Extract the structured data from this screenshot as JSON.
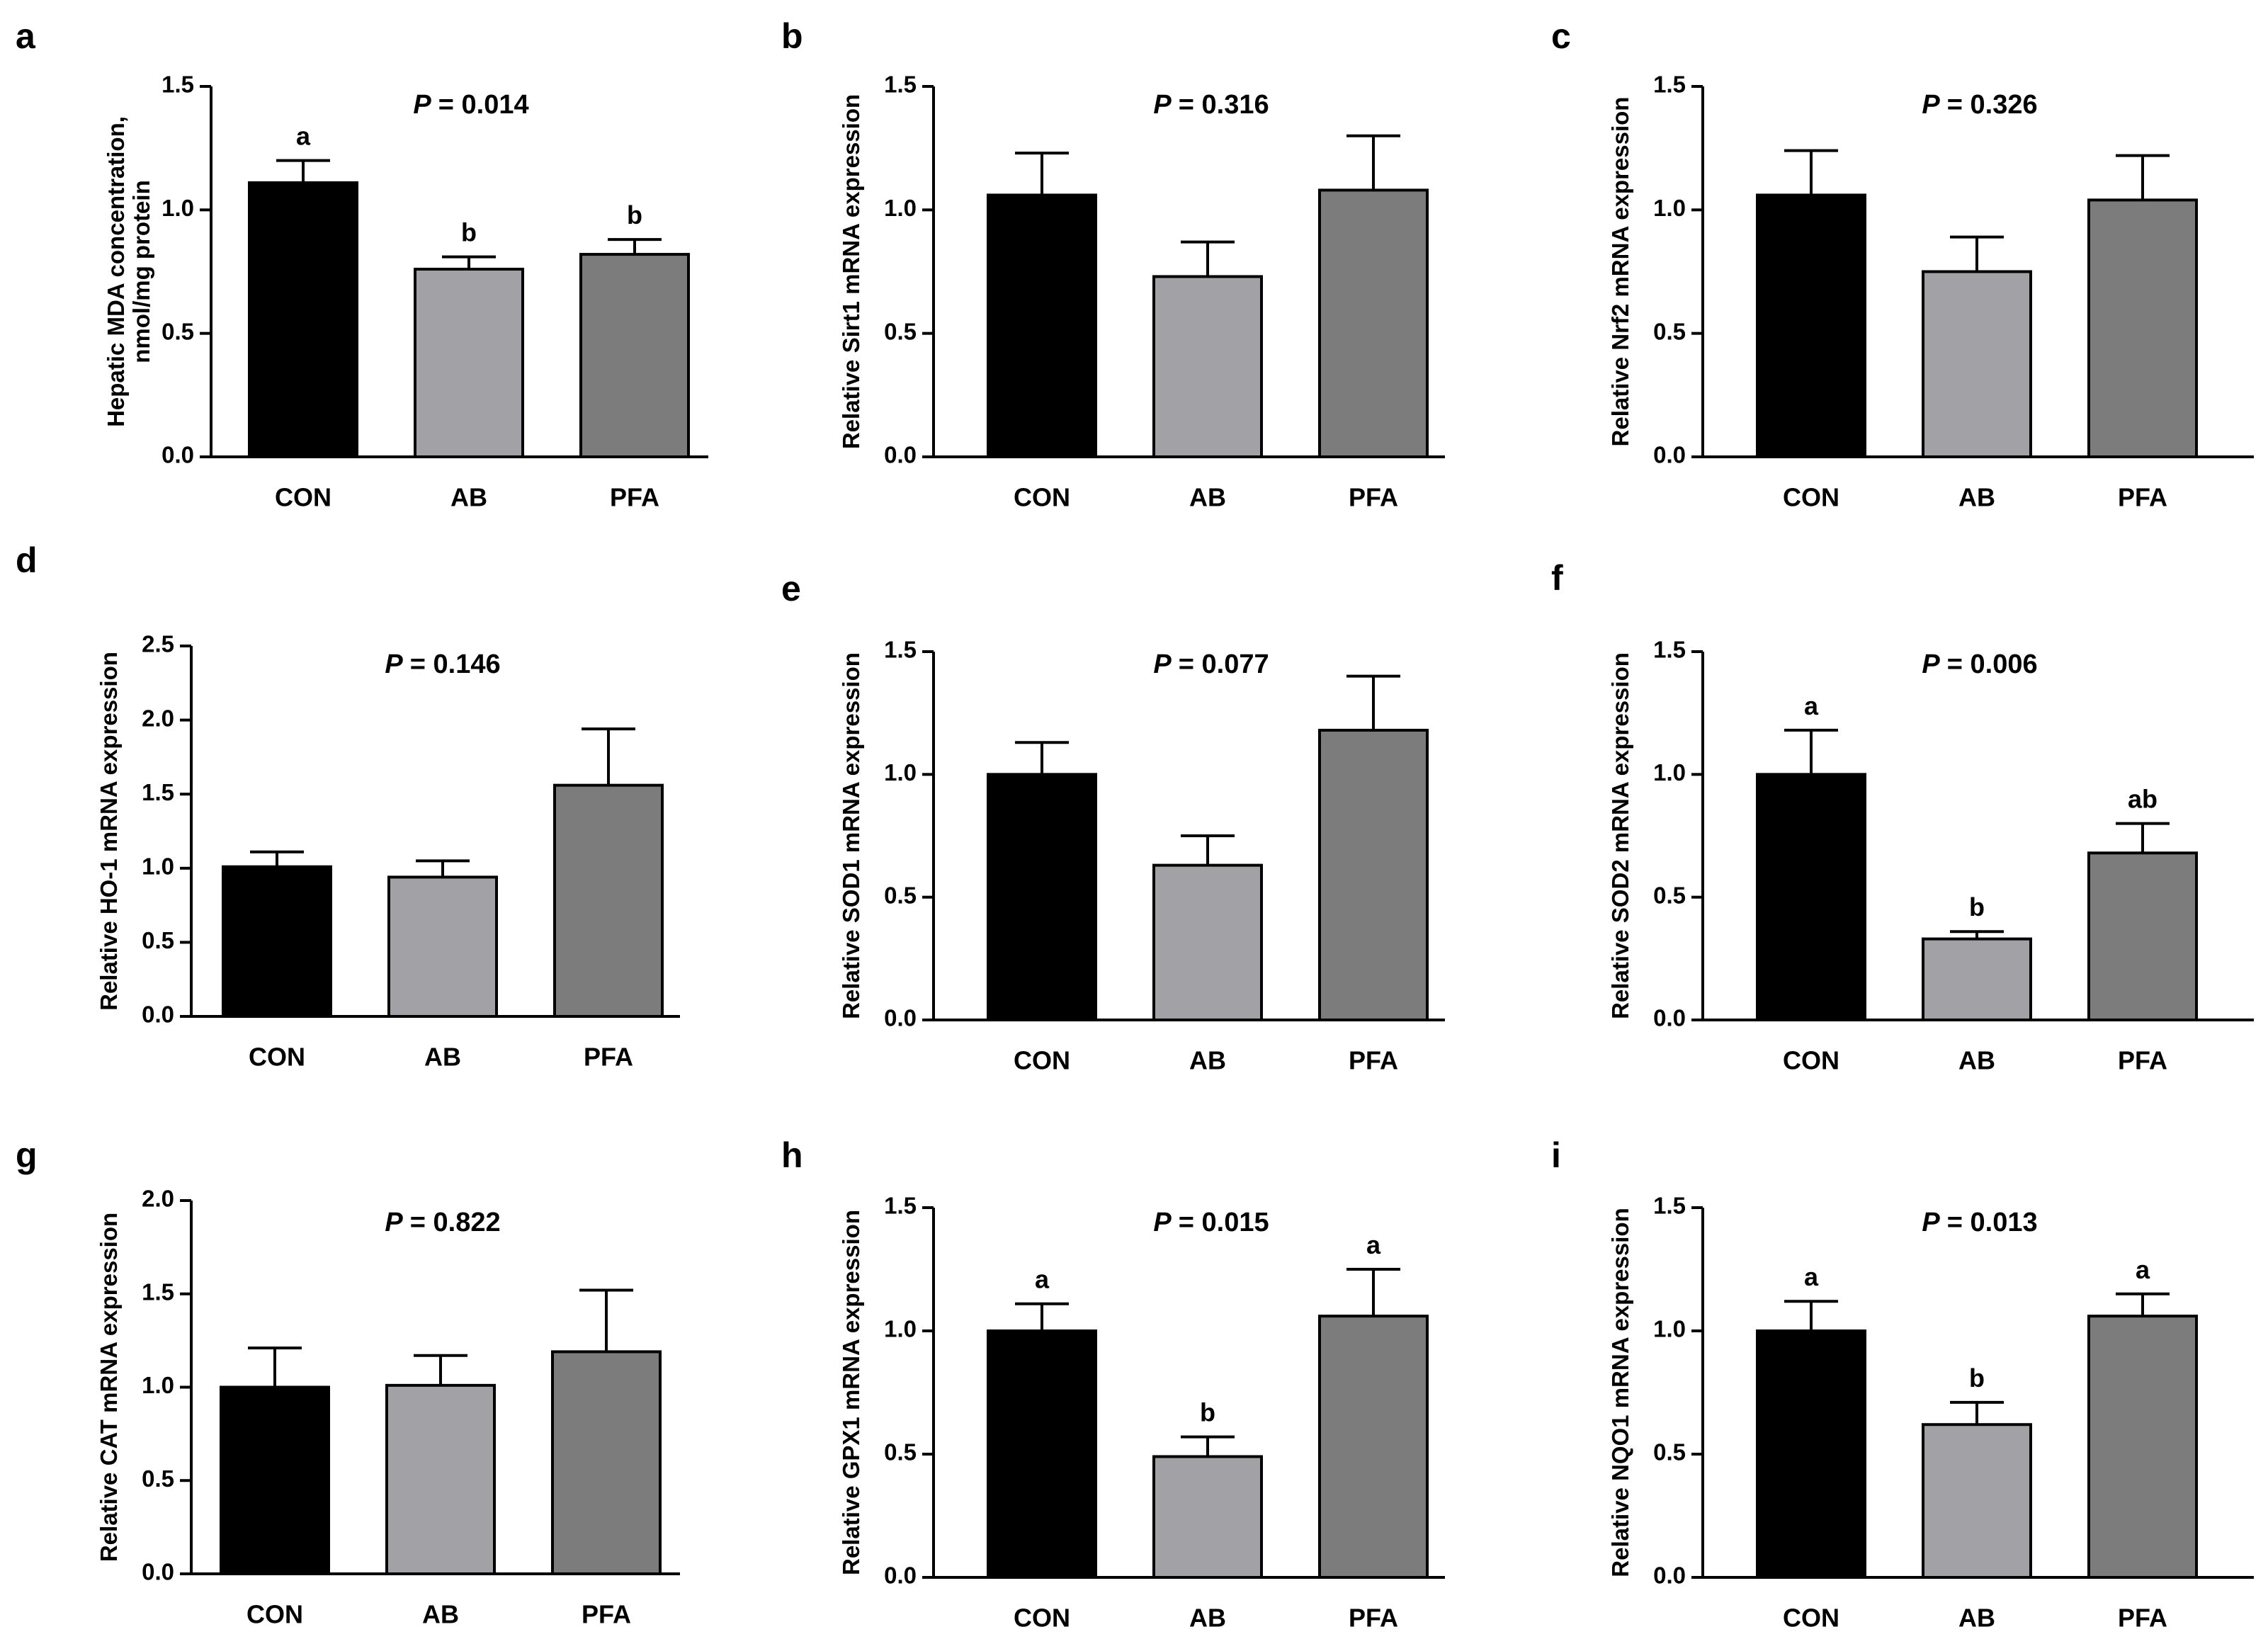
{
  "figure": {
    "background": "#ffffff"
  },
  "chart_data": [
    {
      "panel": "a",
      "type": "bar",
      "p_prefix": "P",
      "p_value": "= 0.014",
      "ylabel": "Hepatic MDA concentration,",
      "ylabel2": "nmol/mg protein",
      "ylim": [
        0,
        1.5
      ],
      "ticks": [
        "0.0",
        "0.5",
        "1.0",
        "1.5"
      ],
      "categories": [
        "CON",
        "AB",
        "PFA"
      ],
      "values": [
        1.11,
        0.76,
        0.82
      ],
      "errors": [
        0.09,
        0.05,
        0.06
      ],
      "sig_letters": [
        "a",
        "b",
        "b"
      ]
    },
    {
      "panel": "b",
      "type": "bar",
      "p_prefix": "P",
      "p_value": "= 0.316",
      "ylabel": "Relative Sirt1 mRNA expression",
      "ylim": [
        0,
        1.5
      ],
      "ticks": [
        "0.0",
        "0.5",
        "1.0",
        "1.5"
      ],
      "categories": [
        "CON",
        "AB",
        "PFA"
      ],
      "values": [
        1.06,
        0.73,
        1.08
      ],
      "errors": [
        0.17,
        0.14,
        0.22
      ],
      "sig_letters": []
    },
    {
      "panel": "c",
      "type": "bar",
      "p_prefix": "P",
      "p_value": "= 0.326",
      "ylabel": "Relative Nrf2 mRNA expression",
      "ylim": [
        0,
        1.5
      ],
      "ticks": [
        "0.0",
        "0.5",
        "1.0",
        "1.5"
      ],
      "categories": [
        "CON",
        "AB",
        "PFA"
      ],
      "values": [
        1.06,
        0.75,
        1.04
      ],
      "errors": [
        0.18,
        0.14,
        0.18
      ],
      "sig_letters": []
    },
    {
      "panel": "d",
      "type": "bar",
      "p_prefix": "P",
      "p_value": "= 0.146",
      "ylabel": "Relative HO-1 mRNA expression",
      "ylim": [
        0,
        2.5
      ],
      "ticks": [
        "0.0",
        "0.5",
        "1.0",
        "1.5",
        "2.0",
        "2.5"
      ],
      "categories": [
        "CON",
        "AB",
        "PFA"
      ],
      "values": [
        1.01,
        0.94,
        1.56
      ],
      "errors": [
        0.1,
        0.11,
        0.38
      ],
      "sig_letters": []
    },
    {
      "panel": "e",
      "type": "bar",
      "p_prefix": "P",
      "p_value": "= 0.077",
      "ylabel": "Relative SOD1 mRNA expression",
      "ylim": [
        0,
        1.5
      ],
      "ticks": [
        "0.0",
        "0.5",
        "1.0",
        "1.5"
      ],
      "categories": [
        "CON",
        "AB",
        "PFA"
      ],
      "values": [
        1.0,
        0.63,
        1.18
      ],
      "errors": [
        0.13,
        0.12,
        0.22
      ],
      "sig_letters": []
    },
    {
      "panel": "f",
      "type": "bar",
      "p_prefix": "P",
      "p_value": "= 0.006",
      "ylabel": "Relative SOD2 mRNA expression",
      "ylim": [
        0,
        1.5
      ],
      "ticks": [
        "0.0",
        "0.5",
        "1.0",
        "1.5"
      ],
      "categories": [
        "CON",
        "AB",
        "PFA"
      ],
      "values": [
        1.0,
        0.33,
        0.68
      ],
      "errors": [
        0.18,
        0.03,
        0.12
      ],
      "sig_letters": [
        "a",
        "b",
        "ab"
      ]
    },
    {
      "panel": "g",
      "type": "bar",
      "p_prefix": "P",
      "p_value": "= 0.822",
      "ylabel": "Relative CAT mRNA expression",
      "ylim": [
        0,
        2.0
      ],
      "ticks": [
        "0.0",
        "0.5",
        "1.0",
        "1.5",
        "2.0"
      ],
      "categories": [
        "CON",
        "AB",
        "PFA"
      ],
      "values": [
        1.0,
        1.01,
        1.19
      ],
      "errors": [
        0.21,
        0.16,
        0.33
      ],
      "sig_letters": []
    },
    {
      "panel": "h",
      "type": "bar",
      "p_prefix": "P",
      "p_value": "= 0.015",
      "ylabel": "Relative GPX1 mRNA expression",
      "ylim": [
        0,
        1.5
      ],
      "ticks": [
        "0.0",
        "0.5",
        "1.0",
        "1.5"
      ],
      "categories": [
        "CON",
        "AB",
        "PFA"
      ],
      "values": [
        1.0,
        0.49,
        1.06
      ],
      "errors": [
        0.11,
        0.08,
        0.19
      ],
      "sig_letters": [
        "a",
        "b",
        "a"
      ]
    },
    {
      "panel": "i",
      "type": "bar",
      "p_prefix": "P",
      "p_value": "= 0.013",
      "ylabel": "Relative NQO1 mRNA expression",
      "ylim": [
        0,
        1.5
      ],
      "ticks": [
        "0.0",
        "0.5",
        "1.0",
        "1.5"
      ],
      "categories": [
        "CON",
        "AB",
        "PFA"
      ],
      "values": [
        1.0,
        0.62,
        1.06
      ],
      "errors": [
        0.12,
        0.09,
        0.09
      ],
      "sig_letters": [
        "a",
        "b",
        "a"
      ]
    }
  ],
  "bar_colors": [
    "#000000",
    "#a2a2a6",
    "#7c7c7c"
  ]
}
